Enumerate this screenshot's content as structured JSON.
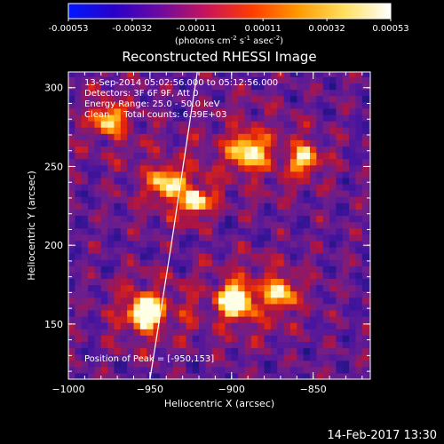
{
  "chart_data": {
    "type": "heatmap",
    "title": "Reconstructed RHESSI Image",
    "colorbar": {
      "ticks": [
        "-0.00053",
        "-0.00032",
        "-0.00011",
        "0.00011",
        "0.00032",
        "0.00053"
      ],
      "tick_values": [
        -0.00053,
        -0.00032,
        -0.00011,
        0.00011,
        0.00032,
        0.00053
      ],
      "range": [
        -0.00053,
        0.00053
      ],
      "unit_prefix": "(photons cm",
      "unit_exp1": "-2",
      "unit_mid": " s",
      "unit_exp2": "-1",
      "unit_mid2": " asec",
      "unit_exp3": "-2",
      "unit_suffix": ")",
      "colors": [
        "#0018ff",
        "#2a00c8",
        "#6e0aa0",
        "#c8145a",
        "#ff3c00",
        "#ff9a00",
        "#ffe060",
        "#ffffff"
      ]
    },
    "xlabel": "Heliocentric X (arcsec)",
    "ylabel": "Heliocentric Y (arcsec)",
    "xlim": [
      -1000,
      -815
    ],
    "ylim": [
      115,
      310
    ],
    "xticks": [
      -1000,
      -950,
      -900,
      -850
    ],
    "xtick_labels": [
      "−1000",
      "−950",
      "−900",
      "−850"
    ],
    "yticks": [
      150,
      200,
      250,
      300
    ],
    "ytick_labels": [
      "150",
      "200",
      "250",
      "300"
    ],
    "info_lines": [
      "13-Sep-2014 05:02:56.000 to 05:12:56.000",
      "Detectors: 3F 6F 9F, Att 0",
      "Energy Range: 25.0 - 50.0 keV",
      "Clean     Total counts: 6.39E+03"
    ],
    "peak_label": "Position of Peak = [-950,153]",
    "peak": [
      -950,
      153
    ],
    "limb": [
      [
        -950,
        115
      ],
      [
        -937,
        200
      ],
      [
        -921,
        310
      ]
    ],
    "sources": [
      {
        "x": -952,
        "y": 158,
        "peak": 1.0,
        "radius": 14
      },
      {
        "x": -923,
        "y": 228,
        "peak": 0.85,
        "radius": 9
      },
      {
        "x": -940,
        "y": 240,
        "peak": 0.55,
        "radius": 16
      },
      {
        "x": -890,
        "y": 260,
        "peak": 0.6,
        "radius": 18
      },
      {
        "x": -898,
        "y": 165,
        "peak": 0.75,
        "radius": 16
      },
      {
        "x": -870,
        "y": 170,
        "peak": 0.5,
        "radius": 14
      },
      {
        "x": -975,
        "y": 280,
        "peak": 0.55,
        "radius": 14
      },
      {
        "x": -855,
        "y": 255,
        "peak": 0.55,
        "radius": 12
      }
    ],
    "grid": false
  },
  "footer": {
    "timestamp": "14-Feb-2017 13:30"
  }
}
